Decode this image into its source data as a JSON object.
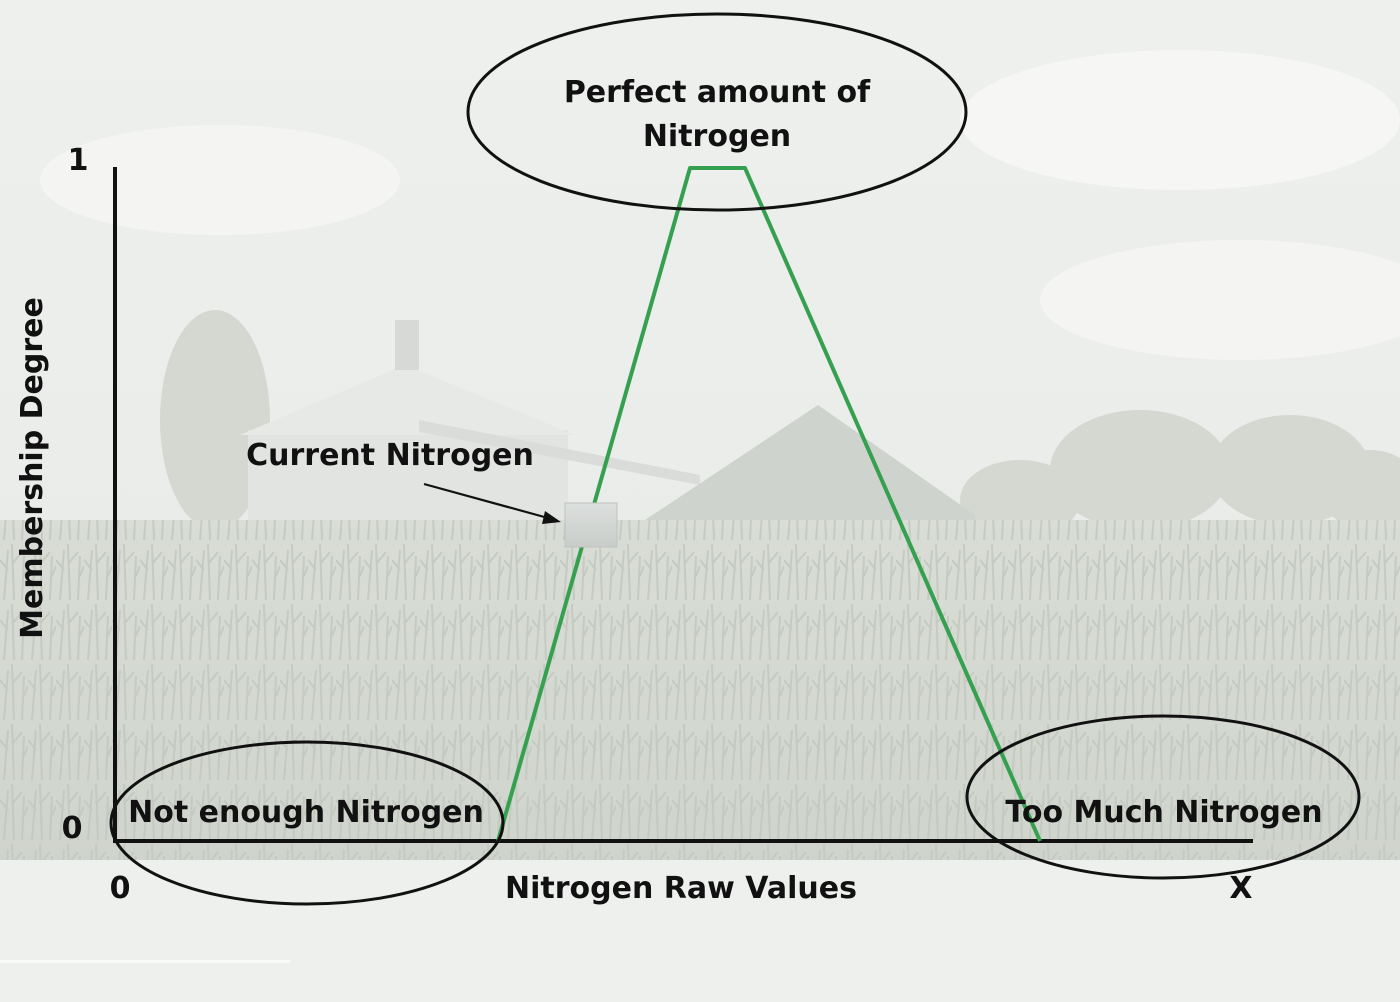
{
  "diagram": {
    "y_axis_title": "Membership Degree",
    "x_axis_title": "Nitrogen Raw Values",
    "y_tick_top": "1",
    "y_tick_bottom": "0",
    "x_tick_start": "0",
    "x_tick_end": "X",
    "peak_label_line1": "Perfect amount of",
    "peak_label_line2": "Nitrogen",
    "current_label": "Current Nitrogen",
    "low_label": "Not enough Nitrogen",
    "high_label": "Too Much Nitrogen"
  },
  "colors": {
    "membership_line": "#35a04f",
    "axis": "#111111",
    "current_marker": "#d6d9d7"
  },
  "background_scene": "faded farm scene with grain silo, barn and corn field"
}
